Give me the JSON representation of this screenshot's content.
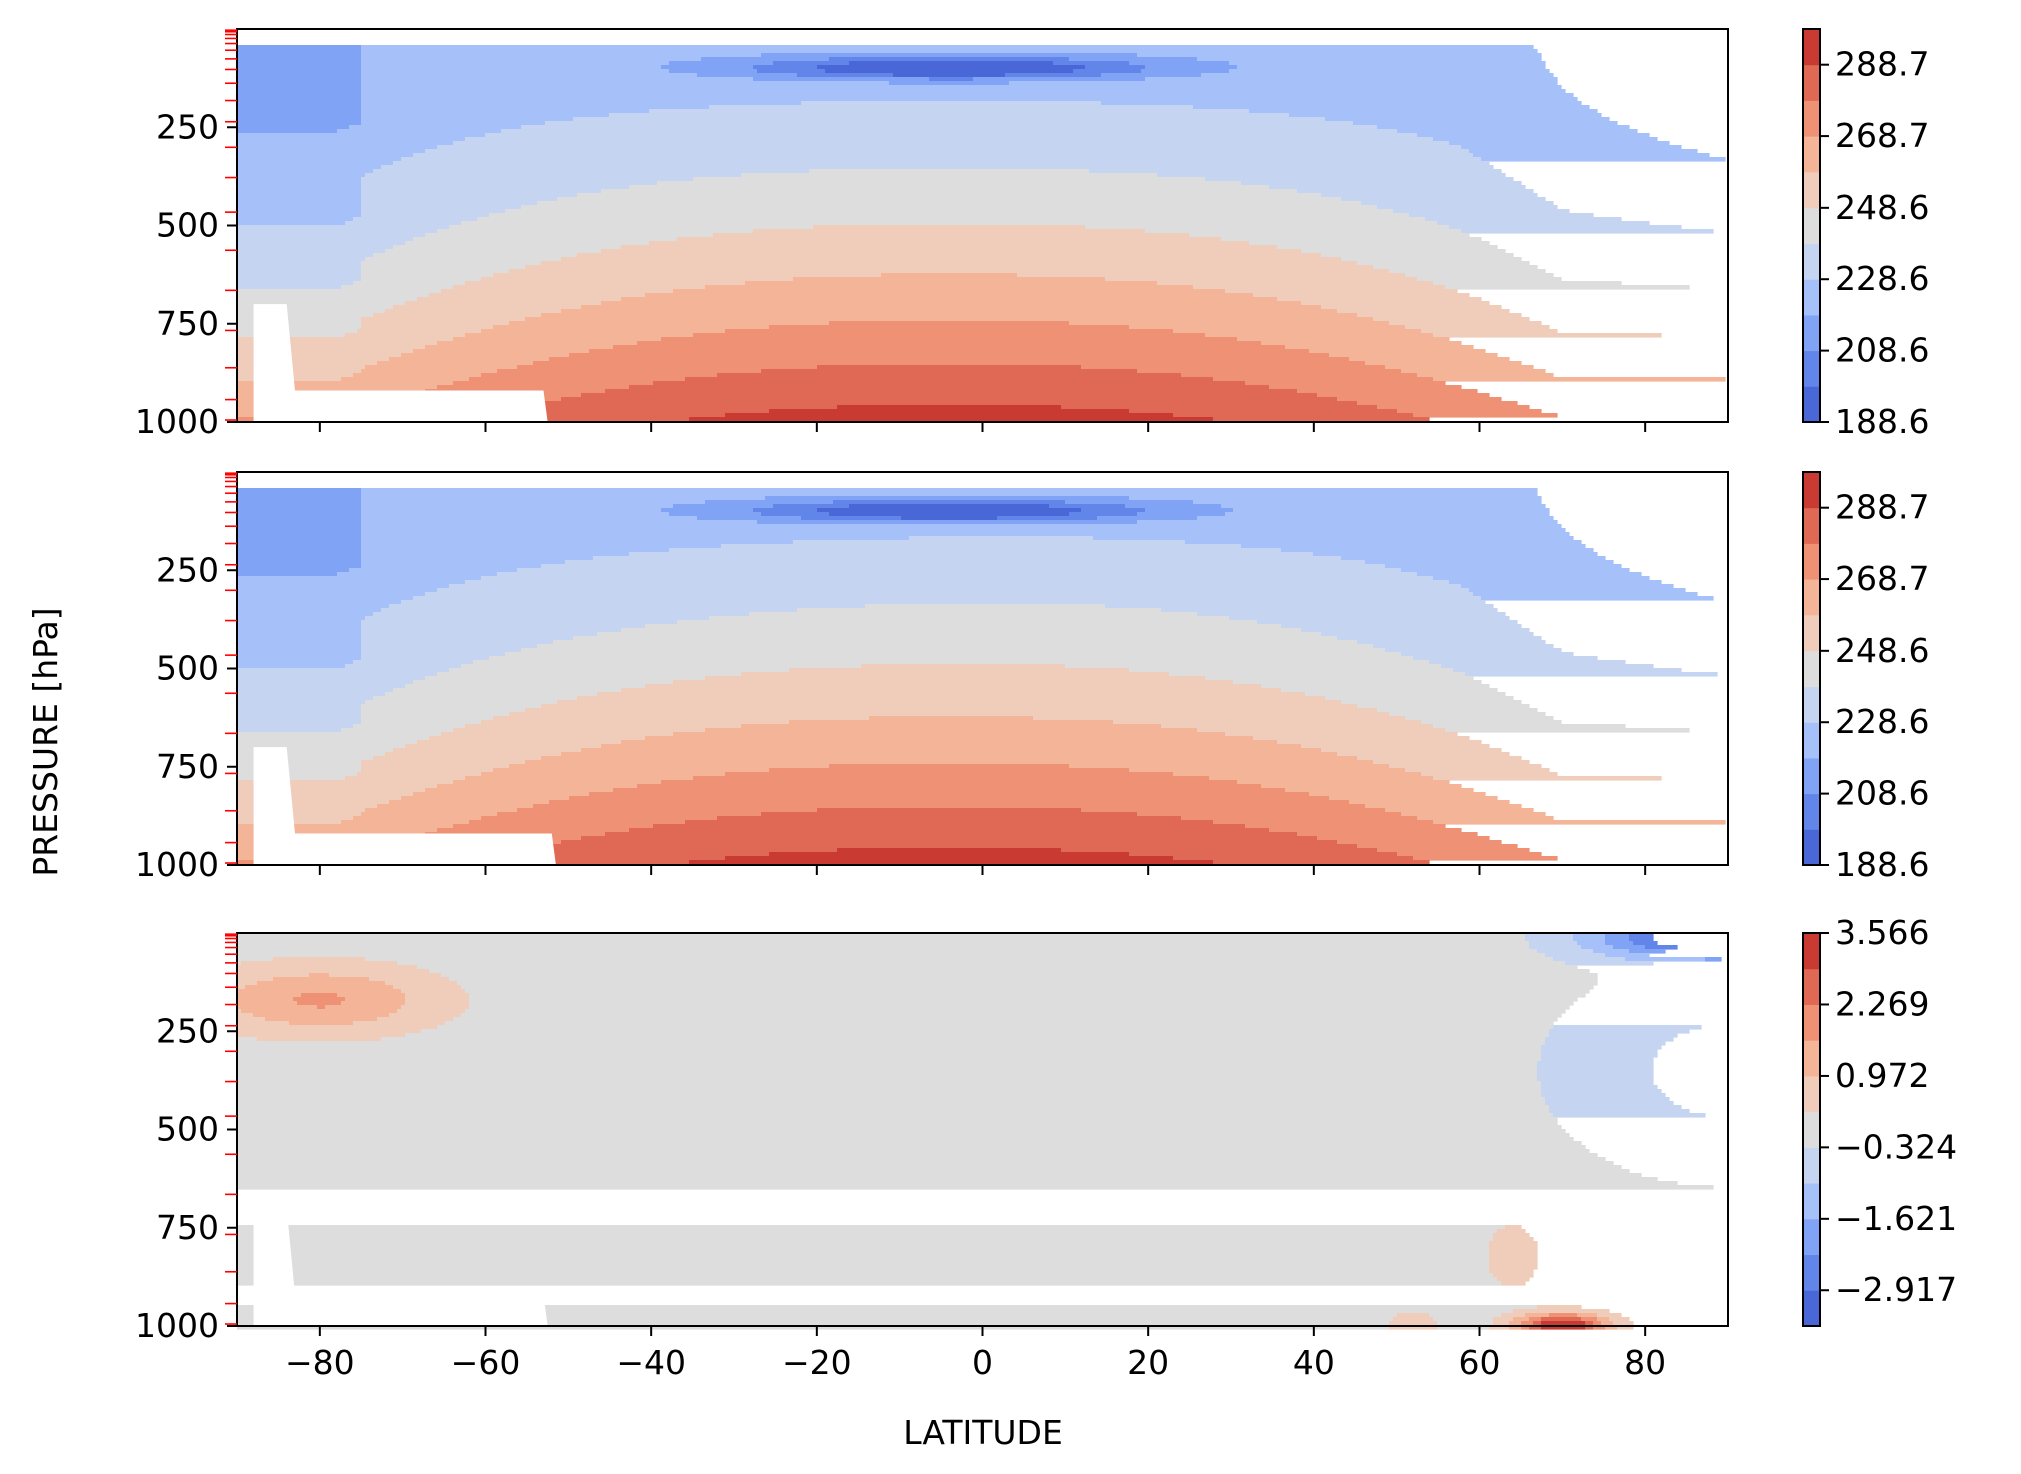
{
  "figure": {
    "ylabel": "PRESSURE [hPa]",
    "xlabel": "LATITUDE"
  },
  "chart_data": [
    {
      "type": "heatmap",
      "title": "",
      "xlabel": "",
      "ylabel": "",
      "xlim": [
        -90,
        90
      ],
      "ylim": [
        1000,
        0
      ],
      "x_ticks": [
        "-80",
        "-60",
        "-40",
        "-20",
        "0",
        "20",
        "40",
        "60",
        "80"
      ],
      "x_tick_values": [
        -80,
        -60,
        -40,
        -20,
        0,
        20,
        40,
        60,
        80
      ],
      "show_x_tick_labels": false,
      "y_ticks": [
        "250",
        "500",
        "750",
        "1000"
      ],
      "y_tick_values": [
        250,
        500,
        750,
        1000
      ],
      "model_levels_hPa": [
        3,
        7,
        14,
        24,
        37,
        54,
        76,
        103,
        138,
        182,
        236,
        301,
        378,
        466,
        563,
        665,
        767,
        862,
        943,
        995
      ],
      "colorbar": {
        "ticks": [
          "188.6",
          "208.6",
          "228.6",
          "248.6",
          "268.7",
          "288.7"
        ],
        "tick_values": [
          188.6,
          208.6,
          228.6,
          248.6,
          268.7,
          288.7
        ],
        "range": [
          188.6,
          298.7
        ],
        "levels": [
          188.6,
          198.6,
          208.6,
          218.6,
          228.6,
          238.6,
          248.6,
          258.7,
          268.7,
          278.7,
          288.7,
          298.7
        ],
        "colors": [
          "#4a67d7",
          "#6285e9",
          "#80a3f5",
          "#a6c1f9",
          "#c5d5f1",
          "#dddddd",
          "#f0cdbb",
          "#f4b497",
          "#ee9174",
          "#e06955",
          "#c83a32"
        ]
      },
      "missing_region": {
        "lat_min": -88,
        "lat_max": -53,
        "p_top": 920,
        "p_step": 700,
        "lat_step": -84
      }
    },
    {
      "type": "heatmap",
      "title": "",
      "xlabel": "",
      "ylabel": "",
      "xlim": [
        -90,
        90
      ],
      "ylim": [
        1000,
        0
      ],
      "x_ticks": [
        "-80",
        "-60",
        "-40",
        "-20",
        "0",
        "20",
        "40",
        "60",
        "80"
      ],
      "x_tick_values": [
        -80,
        -60,
        -40,
        -20,
        0,
        20,
        40,
        60,
        80
      ],
      "show_x_tick_labels": false,
      "y_ticks": [
        "250",
        "500",
        "750",
        "1000"
      ],
      "y_tick_values": [
        250,
        500,
        750,
        1000
      ],
      "model_levels_hPa": [
        3,
        7,
        14,
        24,
        37,
        54,
        76,
        103,
        138,
        182,
        236,
        301,
        378,
        466,
        563,
        665,
        767,
        862,
        943,
        995
      ],
      "colorbar": {
        "ticks": [
          "188.6",
          "208.6",
          "228.6",
          "248.6",
          "268.7",
          "288.7"
        ],
        "tick_values": [
          188.6,
          208.6,
          228.6,
          248.6,
          268.7,
          288.7
        ],
        "range": [
          188.6,
          298.7
        ],
        "levels": [
          188.6,
          198.6,
          208.6,
          218.6,
          228.6,
          238.6,
          248.6,
          258.7,
          268.7,
          278.7,
          288.7,
          298.7
        ],
        "colors": [
          "#4a67d7",
          "#6285e9",
          "#80a3f5",
          "#a6c1f9",
          "#c5d5f1",
          "#dddddd",
          "#f0cdbb",
          "#f4b497",
          "#ee9174",
          "#e06955",
          "#c83a32"
        ]
      },
      "missing_region": {
        "lat_min": -88,
        "lat_max": -52,
        "p_top": 920,
        "p_step": 700,
        "lat_step": -84
      }
    },
    {
      "type": "heatmap",
      "title": "",
      "xlabel": "LATITUDE",
      "ylabel": "",
      "xlim": [
        -90,
        90
      ],
      "ylim": [
        1000,
        0
      ],
      "x_ticks": [
        "−80",
        "−60",
        "−40",
        "−20",
        "0",
        "20",
        "40",
        "60",
        "80"
      ],
      "x_tick_values": [
        -80,
        -60,
        -40,
        -20,
        0,
        20,
        40,
        60,
        80
      ],
      "show_x_tick_labels": true,
      "y_ticks": [
        "250",
        "500",
        "750",
        "1000"
      ],
      "y_tick_values": [
        250,
        500,
        750,
        1000
      ],
      "model_levels_hPa": [
        3,
        7,
        14,
        24,
        37,
        54,
        76,
        103,
        138,
        182,
        236,
        301,
        378,
        466,
        563,
        665,
        767,
        862,
        943,
        995
      ],
      "colorbar": {
        "ticks": [
          "−2.917",
          "−1.621",
          "−0.324",
          "0.972",
          "2.269",
          "3.566"
        ],
        "tick_values": [
          -2.917,
          -1.621,
          -0.324,
          0.972,
          2.269,
          3.566
        ],
        "range": [
          -3.566,
          3.566
        ],
        "levels": [
          -3.566,
          -2.917,
          -2.269,
          -1.621,
          -0.972,
          -0.324,
          0.324,
          0.972,
          1.621,
          2.269,
          2.917,
          3.566
        ],
        "colors": [
          "#4a67d7",
          "#6285e9",
          "#80a3f5",
          "#a6c1f9",
          "#c5d5f1",
          "#dddddd",
          "#f0cdbb",
          "#f4b497",
          "#ee9174",
          "#e06955",
          "#c83a32"
        ]
      },
      "missing_region": {
        "lat_min": -88,
        "lat_max": -53,
        "p_top": 920,
        "p_step": 700,
        "lat_step": -84
      }
    }
  ]
}
